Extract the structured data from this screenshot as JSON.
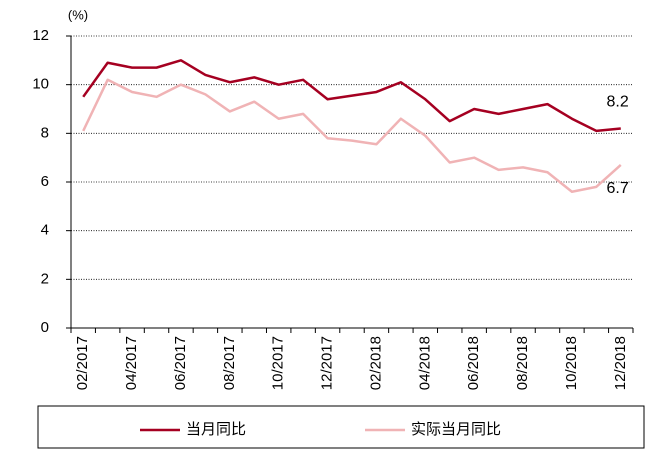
{
  "chart_data": {
    "type": "line",
    "y_label": "(%)",
    "categories": [
      "02/2017",
      null,
      "04/2017",
      null,
      "06/2017",
      null,
      "08/2017",
      null,
      "10/2017",
      null,
      "12/2017",
      null,
      "02/2018",
      null,
      "04/2018",
      null,
      "06/2018",
      null,
      "08/2018",
      null,
      "10/2018",
      null,
      "12/2018"
    ],
    "series": [
      {
        "name": "当月同比",
        "color": "#a50021",
        "values": [
          9.5,
          10.9,
          10.7,
          10.7,
          11.0,
          10.4,
          10.1,
          10.3,
          10.0,
          10.2,
          9.4,
          9.55,
          9.7,
          10.1,
          9.4,
          8.5,
          9.0,
          8.8,
          9.0,
          9.2,
          8.6,
          8.1,
          8.2
        ]
      },
      {
        "name": "实际当月同比",
        "color": "#f0b3b5",
        "values": [
          8.1,
          10.2,
          9.7,
          9.5,
          10.0,
          9.6,
          8.9,
          9.3,
          8.6,
          8.8,
          7.8,
          7.7,
          7.55,
          8.6,
          7.9,
          6.8,
          7.0,
          6.5,
          6.6,
          6.4,
          5.6,
          5.8,
          6.7
        ]
      }
    ],
    "ylim": [
      0,
      12
    ],
    "yticks": [
      0,
      2,
      4,
      6,
      8,
      10,
      12
    ],
    "grid": true
  }
}
